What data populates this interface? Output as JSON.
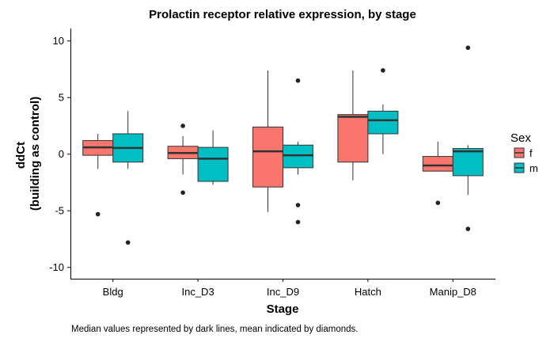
{
  "chart_data": {
    "type": "boxplot",
    "title": "Prolactin receptor relative expression, by stage",
    "xlabel": "Stage",
    "ylabel_lines": [
      "ddCt",
      "(building as control)"
    ],
    "ylim": [
      -11,
      11.1
    ],
    "yticks": [
      -10,
      -5,
      0,
      5,
      10
    ],
    "grid": false,
    "legend": {
      "title": "Sex",
      "placement": "right",
      "entries": [
        {
          "label": "f",
          "color": "#F8766D"
        },
        {
          "label": "m",
          "color": "#00BFC4"
        }
      ]
    },
    "categories": [
      "Bldg",
      "Inc_D3",
      "Inc_D9",
      "Hatch",
      "Manip_D8"
    ],
    "series": [
      {
        "name": "f",
        "color": "#F8766D",
        "boxes": [
          {
            "min": -1.3,
            "q1": -0.1,
            "median": 0.6,
            "q3": 1.2,
            "max": 1.8,
            "outliers": [
              -5.3
            ]
          },
          {
            "min": -1.8,
            "q1": -0.4,
            "median": 0.1,
            "q3": 0.7,
            "max": 1.6,
            "outliers": [
              2.5,
              -3.4
            ]
          },
          {
            "min": -5.1,
            "q1": -2.9,
            "median": 0.25,
            "q3": 2.4,
            "max": 7.4,
            "outliers": []
          },
          {
            "min": -2.3,
            "q1": -0.7,
            "median": 3.3,
            "q3": 3.5,
            "max": 7.4,
            "outliers": []
          },
          {
            "min": -1.5,
            "q1": -1.5,
            "median": -1.0,
            "q3": -0.2,
            "max": 1.1,
            "outliers": [
              -4.3
            ]
          }
        ]
      },
      {
        "name": "m",
        "color": "#00BFC4",
        "boxes": [
          {
            "min": -1.3,
            "q1": -0.7,
            "median": 0.55,
            "q3": 1.8,
            "max": 3.8,
            "outliers": [
              -7.8
            ]
          },
          {
            "min": -2.7,
            "q1": -2.4,
            "median": -0.4,
            "q3": 0.6,
            "max": 2.1,
            "outliers": []
          },
          {
            "min": -1.8,
            "q1": -1.2,
            "median": -0.1,
            "q3": 0.8,
            "max": 1.1,
            "outliers": [
              6.5,
              -4.5,
              -6.0
            ]
          },
          {
            "min": 0.0,
            "q1": 1.8,
            "median": 3.0,
            "q3": 3.8,
            "max": 4.4,
            "outliers": [
              7.4
            ]
          },
          {
            "min": -3.6,
            "q1": -1.9,
            "median": 0.25,
            "q3": 0.5,
            "max": 0.8,
            "outliers": [
              9.4,
              -6.6
            ]
          }
        ]
      }
    ],
    "caption": "Median values represented by dark lines, mean indicated by diamonds."
  }
}
